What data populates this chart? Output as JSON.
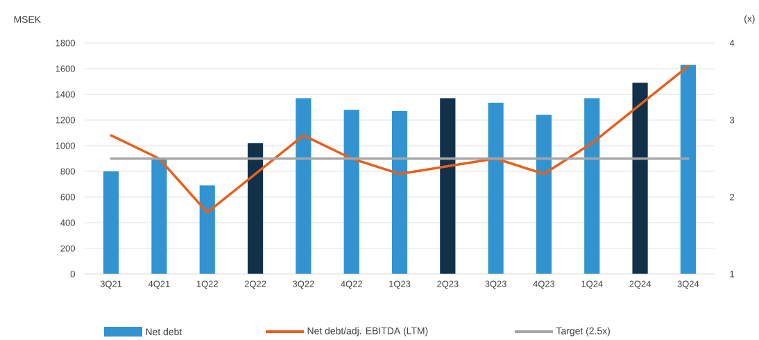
{
  "chart_data": {
    "type": "bar",
    "ylabel": "MSEK",
    "y2label": "(x)",
    "categories": [
      "3Q21",
      "4Q21",
      "1Q22",
      "2Q22",
      "3Q22",
      "4Q22",
      "1Q23",
      "2Q23",
      "3Q23",
      "4Q23",
      "1Q24",
      "2Q24",
      "3Q24"
    ],
    "series": [
      {
        "name": "Net debt",
        "color": "#3194d0",
        "colors": [
          "#3194d0",
          "#3194d0",
          "#3194d0",
          "#12304a",
          "#3194d0",
          "#3194d0",
          "#3194d0",
          "#12304a",
          "#3194d0",
          "#3194d0",
          "#3194d0",
          "#12304a",
          "#3194d0"
        ],
        "values": [
          800,
          900,
          690,
          1020,
          1370,
          1280,
          1270,
          1370,
          1335,
          1240,
          1370,
          1490,
          1630
        ]
      },
      {
        "name": "Net debt/adj. EBITDA (LTM)",
        "type": "line",
        "axis": "y2",
        "color": "#e8601c",
        "values": [
          2.8,
          2.5,
          1.8,
          2.3,
          2.8,
          2.5,
          2.3,
          2.4,
          2.5,
          2.3,
          2.7,
          3.2,
          3.7
        ]
      },
      {
        "name": "Target (2.5x)",
        "type": "line",
        "axis": "y2",
        "color": "#a6a6a6",
        "values": [
          2.5,
          2.5,
          2.5,
          2.5,
          2.5,
          2.5,
          2.5,
          2.5,
          2.5,
          2.5,
          2.5,
          2.5,
          2.5
        ]
      }
    ],
    "ylim": [
      0,
      1800
    ],
    "yticks": [
      0,
      200,
      400,
      600,
      800,
      1000,
      1200,
      1400,
      1600,
      1800
    ],
    "y2lim": [
      1,
      4
    ],
    "y2ticks": [
      1,
      2,
      3,
      4
    ],
    "grid": "y",
    "legend": "bottom"
  }
}
